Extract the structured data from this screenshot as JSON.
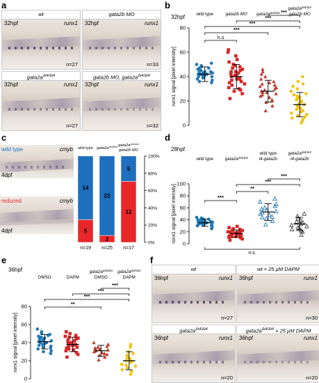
{
  "panel_a": {
    "label": "a",
    "images": [
      {
        "header": "wt",
        "stage": "32hpf",
        "probe": "runx1",
        "n": "n=27",
        "stain": 0.8
      },
      {
        "header": "gata2b MO",
        "stage": "32hpf",
        "probe": "runx1",
        "n": "n=33",
        "stain": 0.55
      },
      {
        "header": "gata2a^{Δi4/Δi4}",
        "stage": "32hpf",
        "probe": "runx1",
        "n": "n=27",
        "stain": 0.5
      },
      {
        "header": "gata2b MO, gata2a^{Δi4/Δi4}",
        "stage": "32hpf",
        "probe": "runx1",
        "n": "n=32",
        "stain": 0.35
      }
    ]
  },
  "panel_b": {
    "label": "b",
    "stage": "32hpf",
    "ylabel": "runx1 signal [pixel intensity]",
    "groups": [
      "wild type",
      "gata2b MO",
      "gata2a^{Δi4/Δi4}",
      "gata2a^{Δi4/Δi4} gata2b MO"
    ],
    "sig": [
      "n.s",
      "***",
      "***",
      "***",
      "***"
    ]
  },
  "panel_c": {
    "label": "c",
    "legend_top": "wild type",
    "legend_bottom": "reduced",
    "probe": "cmyb",
    "stage": "4dpf",
    "columns": [
      "wild type",
      "gata2a^{Δi4/Δi4}",
      "gata2a^{Δi4/Δi4} gata2b MO"
    ],
    "ns": [
      "n=19",
      "n=25",
      "n=17"
    ]
  },
  "panel_d": {
    "label": "d",
    "stage": "28hpf",
    "ylabel": "runx1 signal [pixel intensity]",
    "groups": [
      "wild type",
      "gata2a^{Δi4/Δi4}",
      "wild type i4-gata2b",
      "gata2a^{Δi4/Δi4} i4-gata2b"
    ],
    "sig": [
      "***",
      "**",
      "***",
      "***"
    ],
    "ns_label": "n.s."
  },
  "panel_e": {
    "label": "e",
    "stage": "36hpf",
    "ylabel": "runx1 signal [pixel intensity]",
    "groups": [
      "DMSO",
      "DAPM",
      "gata2a^{Δi4/Δi4} DMSO",
      "gata2a^{Δi4/Δi4} DAPM"
    ],
    "sig": [
      "***",
      "***",
      "***",
      "**"
    ]
  },
  "panel_f": {
    "label": "f",
    "images": [
      {
        "header": "wt",
        "stage": "36hpf",
        "probe": "runx1",
        "n": "n=27",
        "stain": 0.8
      },
      {
        "header": "wt + 25 µM DAPM",
        "stage": "36hpf",
        "probe": "runx1",
        "n": "n=30",
        "stain": 0.6
      },
      {
        "header": "gata2a^{Δi4/Δi4}",
        "stage": "36hpf",
        "probe": "runx1",
        "n": "n=20",
        "stain": 0.55
      },
      {
        "header": "gata2a^{Δi4/Δi4} + 25 µM DAPM",
        "stage": "36hpf",
        "probe": "runx1",
        "n": "n=20",
        "stain": 0.35
      }
    ]
  },
  "colors": {
    "wild_type": "#1f77b4",
    "gata2b_MO": "#d62728",
    "gata2a_mut": "#c0392b",
    "double": "#f1c40f",
    "bar_blue": "#1f6fbf",
    "bar_red": "#e8272a"
  },
  "chart_data": [
    {
      "type": "scatter",
      "title": "32hpf",
      "xlabel": "",
      "ylabel": "runx1 signal [pixel intensity]",
      "ylim": [
        0,
        80
      ],
      "yticks": [
        0,
        20,
        40,
        60,
        80
      ],
      "categories": [
        "wild type",
        "gata2b MO",
        "gata2a^{Δi4/Δi4}",
        "gata2a^{Δi4/Δi4} gata2b MO"
      ],
      "series": [
        {
          "color": "#1f77b4",
          "marker": "circle",
          "mean": 42,
          "sd": 6,
          "values": [
            35,
            37,
            38,
            39,
            40,
            40,
            41,
            41,
            42,
            42,
            42,
            43,
            43,
            44,
            44,
            45,
            46,
            47,
            48,
            49,
            50,
            51,
            36,
            44,
            39,
            47
          ]
        },
        {
          "color": "#d62728",
          "marker": "square",
          "mean": 40,
          "sd": 10,
          "values": [
            22,
            26,
            29,
            31,
            33,
            35,
            36,
            37,
            38,
            39,
            40,
            41,
            42,
            43,
            44,
            45,
            46,
            47,
            48,
            50,
            52,
            54,
            57,
            60,
            30,
            38,
            41,
            44,
            49,
            34,
            28,
            62
          ]
        },
        {
          "color": "#c0392b",
          "marker": "triangle",
          "mean": 28,
          "sd": 9,
          "values": [
            12,
            16,
            19,
            21,
            23,
            24,
            25,
            26,
            27,
            28,
            29,
            30,
            31,
            32,
            33,
            34,
            35,
            36,
            38,
            40,
            42,
            44,
            20,
            27,
            33,
            46
          ]
        },
        {
          "color": "#f1c40f",
          "marker": "circle",
          "mean": 17,
          "sd": 10,
          "values": [
            2,
            4,
            6,
            8,
            9,
            10,
            11,
            12,
            13,
            14,
            15,
            16,
            17,
            18,
            19,
            20,
            21,
            22,
            23,
            24,
            25,
            26,
            28,
            30,
            32,
            34,
            36,
            40,
            7,
            5
          ]
        }
      ]
    },
    {
      "type": "bar",
      "title": "",
      "stacked": true,
      "categories": [
        "wild type",
        "gata2a^{Δi4/Δi4}",
        "gata2a^{Δi4/Δi4} gata2b MO"
      ],
      "ylim": [
        0,
        100
      ],
      "yticks": [
        "0%",
        "20%",
        "40%",
        "60%",
        "80%",
        "100%"
      ],
      "series": [
        {
          "name": "reduced",
          "color": "#e8272a",
          "counts": [
            5,
            2,
            12
          ],
          "values": [
            26.3,
            8.0,
            70.6
          ]
        },
        {
          "name": "wild type",
          "color": "#1f6fbf",
          "counts": [
            14,
            23,
            5
          ],
          "values": [
            73.7,
            92.0,
            29.4
          ]
        }
      ]
    },
    {
      "type": "scatter",
      "title": "28hpf",
      "ylabel": "runx1 signal [pixel intensity]",
      "ylim": [
        0,
        100
      ],
      "yticks": [
        0,
        20,
        40,
        60,
        80,
        100
      ],
      "categories": [
        "wild type",
        "gata2a^{Δi4/Δi4}",
        "wild type i4-gata2b",
        "gata2a^{Δi4/Δi4} i4-gata2b"
      ],
      "series": [
        {
          "color": "#1f77b4",
          "marker": "circle",
          "mean": 35,
          "sd": 6,
          "values": [
            25,
            28,
            30,
            31,
            32,
            33,
            34,
            34,
            35,
            35,
            36,
            36,
            37,
            38,
            38,
            39,
            40,
            41,
            42,
            43,
            44,
            30,
            33,
            37,
            41
          ]
        },
        {
          "color": "#d62728",
          "marker": "square",
          "mean": 17,
          "sd": 6,
          "values": [
            6,
            8,
            10,
            11,
            12,
            13,
            14,
            15,
            16,
            16,
            17,
            18,
            18,
            19,
            20,
            21,
            22,
            23,
            24,
            25,
            27,
            29,
            12,
            20,
            15
          ]
        },
        {
          "color": "#1f77b4",
          "marker": "triangle-open",
          "mean": 53,
          "sd": 14,
          "values": [
            32,
            38,
            42,
            45,
            48,
            50,
            52,
            54,
            56,
            58,
            60,
            63,
            66,
            70,
            75,
            44
          ]
        },
        {
          "color": "#444444",
          "marker": "triangle-open",
          "mean": 33,
          "sd": 11,
          "values": [
            15,
            20,
            24,
            27,
            29,
            31,
            33,
            35,
            37,
            39,
            42,
            46,
            50,
            26,
            22
          ]
        }
      ]
    },
    {
      "type": "scatter",
      "title": "36hpf",
      "ylabel": "runx1 signal [pixel intensity]",
      "ylim": [
        0,
        80
      ],
      "yticks": [
        0,
        20,
        40,
        60,
        80
      ],
      "categories": [
        "DMSO",
        "DAPM",
        "gata2a^{Δi4/Δi4} DMSO",
        "gata2a^{Δi4/Δi4} DAPM"
      ],
      "series": [
        {
          "color": "#1f77b4",
          "marker": "circle",
          "mean": 41,
          "sd": 8,
          "values": [
            28,
            31,
            33,
            35,
            36,
            37,
            38,
            39,
            40,
            40,
            41,
            42,
            43,
            44,
            45,
            46,
            47,
            48,
            50,
            52,
            55,
            34,
            42,
            49,
            30
          ]
        },
        {
          "color": "#d62728",
          "marker": "square",
          "mean": 38,
          "sd": 8,
          "values": [
            24,
            27,
            29,
            31,
            33,
            34,
            35,
            36,
            37,
            38,
            39,
            40,
            41,
            42,
            43,
            44,
            45,
            46,
            48,
            50,
            52,
            32,
            37,
            47
          ]
        },
        {
          "color": "#c0392b",
          "marker": "triangle",
          "mean": 31,
          "sd": 6,
          "values": [
            21,
            24,
            26,
            28,
            29,
            30,
            31,
            32,
            33,
            34,
            35,
            36,
            38,
            40,
            27,
            33
          ]
        },
        {
          "color": "#f1c40f",
          "marker": "circle",
          "mean": 20,
          "sd": 10,
          "values": [
            5,
            8,
            10,
            12,
            14,
            16,
            18,
            19,
            20,
            22,
            24,
            26,
            28,
            30,
            35,
            38,
            15,
            23
          ]
        }
      ]
    }
  ]
}
